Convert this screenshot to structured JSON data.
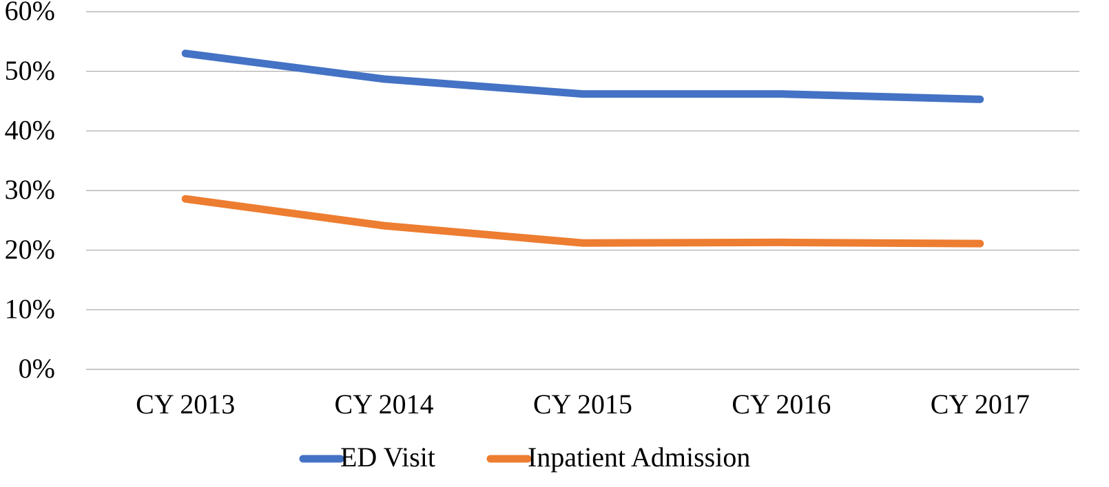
{
  "chart_data": {
    "type": "line",
    "categories": [
      "CY 2013",
      "CY 2014",
      "CY 2015",
      "CY 2016",
      "CY 2017"
    ],
    "series": [
      {
        "name": "ED Visit",
        "color": "#4472c4",
        "values": [
          53.0,
          48.7,
          46.2,
          46.2,
          45.3
        ]
      },
      {
        "name": "Inpatient Admission",
        "color": "#ed7d31",
        "values": [
          28.6,
          24.1,
          21.2,
          21.3,
          21.1
        ]
      }
    ],
    "ylim": [
      0,
      60
    ],
    "yticks": [
      {
        "value": 0,
        "label": "0%"
      },
      {
        "value": 10,
        "label": "10%"
      },
      {
        "value": 20,
        "label": "20%"
      },
      {
        "value": 30,
        "label": "30%"
      },
      {
        "value": 40,
        "label": "40%"
      },
      {
        "value": 50,
        "label": "50%"
      },
      {
        "value": 60,
        "label": "60%"
      }
    ],
    "grid": true,
    "legend": "bottom"
  }
}
